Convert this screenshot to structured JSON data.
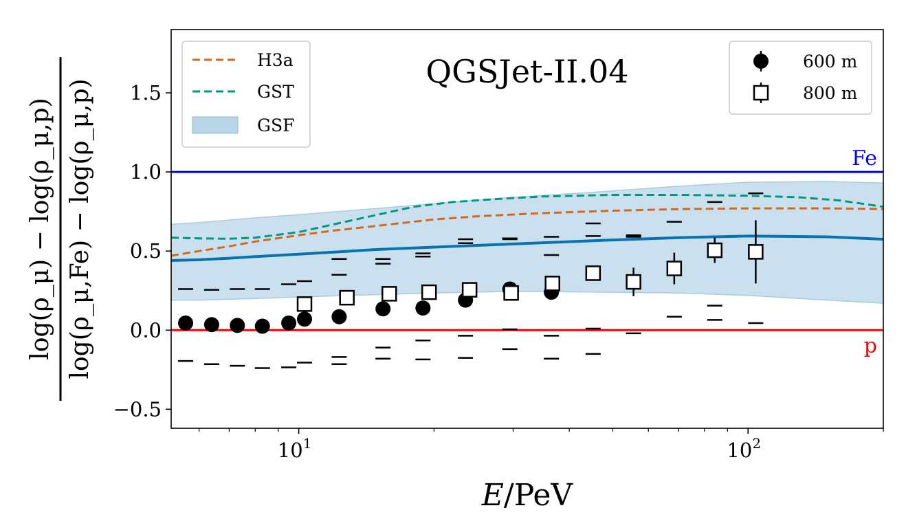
{
  "chart_data": {
    "type": "scatter",
    "title": "QGSJet-II.04",
    "xlabel_italic": "E",
    "xlabel_rest": "/PeV",
    "ylabel": {
      "numerator": "log(ρ_μ) − log(ρ_μ,p)",
      "denominator": "log(ρ_μ,Fe) − log(ρ_μ,p)"
    },
    "xscale": "log",
    "xlim": [
      5.2,
      200
    ],
    "ylim": [
      -0.62,
      1.9
    ],
    "yticks": [
      -0.5,
      0.0,
      0.5,
      1.0,
      1.5
    ],
    "ytick_labels": [
      "−0.5",
      "0.0",
      "0.5",
      "1.0",
      "1.5"
    ],
    "xticks": [
      {
        "base": "10",
        "exp": "1",
        "value": 10
      },
      {
        "base": "10",
        "exp": "2",
        "value": 100
      }
    ],
    "reference_lines": [
      {
        "name": "Fe",
        "y": 1.0,
        "color": "#0000ee"
      },
      {
        "name": "p",
        "y": 0.0,
        "color": "#ff0000"
      }
    ],
    "legend_left": [
      {
        "label": "H3a",
        "style": "dashed",
        "color": "#d2691e"
      },
      {
        "label": "GST",
        "style": "dashed",
        "color": "#009980"
      },
      {
        "label": "GSF",
        "style": "band",
        "color": "#b8d6e8"
      }
    ],
    "legend_right": [
      {
        "label": "600 m",
        "marker": "circle"
      },
      {
        "label": "800 m",
        "marker": "square"
      }
    ],
    "series": [
      {
        "name": "H3a",
        "kind": "line",
        "dash": true,
        "color": "#d2691e",
        "x": [
          5.2,
          6,
          7,
          8,
          10,
          12,
          15,
          20,
          25,
          35,
          50,
          70,
          100,
          150,
          200
        ],
        "y": [
          0.47,
          0.5,
          0.53,
          0.56,
          0.6,
          0.63,
          0.66,
          0.7,
          0.72,
          0.74,
          0.755,
          0.765,
          0.77,
          0.77,
          0.765
        ]
      },
      {
        "name": "GST",
        "kind": "line",
        "dash": true,
        "color": "#009980",
        "x": [
          5.2,
          6,
          7,
          8,
          10,
          12,
          15,
          18,
          22,
          28,
          35,
          50,
          70,
          100,
          130,
          160,
          200
        ],
        "y": [
          0.585,
          0.58,
          0.578,
          0.585,
          0.62,
          0.67,
          0.73,
          0.78,
          0.81,
          0.83,
          0.845,
          0.855,
          0.855,
          0.85,
          0.84,
          0.82,
          0.78
        ]
      },
      {
        "name": "GSF",
        "kind": "line",
        "dash": false,
        "color": "#0a72b0",
        "x": [
          5.2,
          6,
          7,
          8,
          10,
          15,
          20,
          30,
          50,
          70,
          100,
          150,
          200
        ],
        "y": [
          0.44,
          0.445,
          0.455,
          0.465,
          0.48,
          0.51,
          0.525,
          0.545,
          0.57,
          0.585,
          0.595,
          0.59,
          0.575
        ]
      },
      {
        "name": "GSF band",
        "kind": "band",
        "color": "#b8d6e8",
        "x": [
          5.2,
          6,
          8,
          10,
          15,
          20,
          30,
          50,
          70,
          100,
          150,
          200
        ],
        "upper": [
          0.67,
          0.68,
          0.71,
          0.73,
          0.77,
          0.8,
          0.84,
          0.88,
          0.91,
          0.935,
          0.94,
          0.93
        ],
        "lower": [
          0.19,
          0.19,
          0.2,
          0.21,
          0.225,
          0.235,
          0.245,
          0.24,
          0.235,
          0.22,
          0.19,
          0.17
        ]
      },
      {
        "name": "600 m",
        "kind": "points",
        "marker": "circle",
        "x": [
          5.6,
          6.4,
          7.3,
          8.3,
          9.5,
          10.3,
          12.3,
          15.4,
          18.9,
          23.5,
          29.5,
          36.5
        ],
        "y": [
          0.045,
          0.035,
          0.03,
          0.025,
          0.045,
          0.07,
          0.085,
          0.135,
          0.14,
          0.19,
          0.26,
          0.24
        ]
      },
      {
        "name": "800 m",
        "kind": "points",
        "marker": "square",
        "x": [
          10.3,
          12.8,
          15.9,
          19.5,
          24.0,
          29.7,
          36.7,
          45.2,
          55.6,
          68.5,
          84.3,
          104.0
        ],
        "y": [
          0.165,
          0.205,
          0.23,
          0.24,
          0.255,
          0.235,
          0.295,
          0.36,
          0.305,
          0.39,
          0.505,
          0.495
        ],
        "yerr": [
          0.0,
          0.0,
          0.0,
          0.0,
          0.0,
          0.0,
          0.03,
          0.03,
          0.09,
          0.1,
          0.08,
          0.2
        ]
      },
      {
        "name": "systematic upper",
        "kind": "caps",
        "x": [
          5.6,
          6.4,
          7.3,
          8.3,
          9.5,
          10.3,
          12.3,
          15.4,
          18.9,
          23.5,
          29.5,
          36.5,
          45.2,
          55.6,
          68.5,
          84.3,
          104.0
        ],
        "y": [
          0.26,
          0.255,
          0.26,
          0.26,
          0.29,
          0.31,
          0.35,
          0.45,
          0.465,
          0.55,
          0.575,
          0.59,
          0.675,
          0.6,
          0.685,
          0.81,
          0.865
        ],
        "y2": [
          null,
          null,
          null,
          null,
          null,
          null,
          0.45,
          0.42,
          0.485,
          0.575,
          0.58,
          0.475,
          0.595,
          0.59,
          null,
          null,
          null
        ]
      },
      {
        "name": "systematic lower",
        "kind": "caps",
        "x": [
          5.6,
          6.4,
          7.3,
          8.3,
          9.5,
          10.3,
          12.3,
          15.4,
          18.9,
          23.5,
          29.5,
          36.5,
          45.2,
          55.6,
          68.5,
          84.3,
          104.0
        ],
        "y": [
          -0.195,
          -0.215,
          -0.225,
          -0.24,
          -0.235,
          -0.205,
          -0.215,
          -0.18,
          -0.185,
          -0.175,
          -0.12,
          -0.18,
          -0.15,
          -0.02,
          0.085,
          0.065,
          0.045
        ],
        "y2": [
          null,
          null,
          null,
          null,
          null,
          null,
          -0.17,
          -0.11,
          -0.065,
          -0.035,
          0.005,
          -0.035,
          0.01,
          null,
          null,
          0.155,
          null
        ]
      }
    ]
  }
}
